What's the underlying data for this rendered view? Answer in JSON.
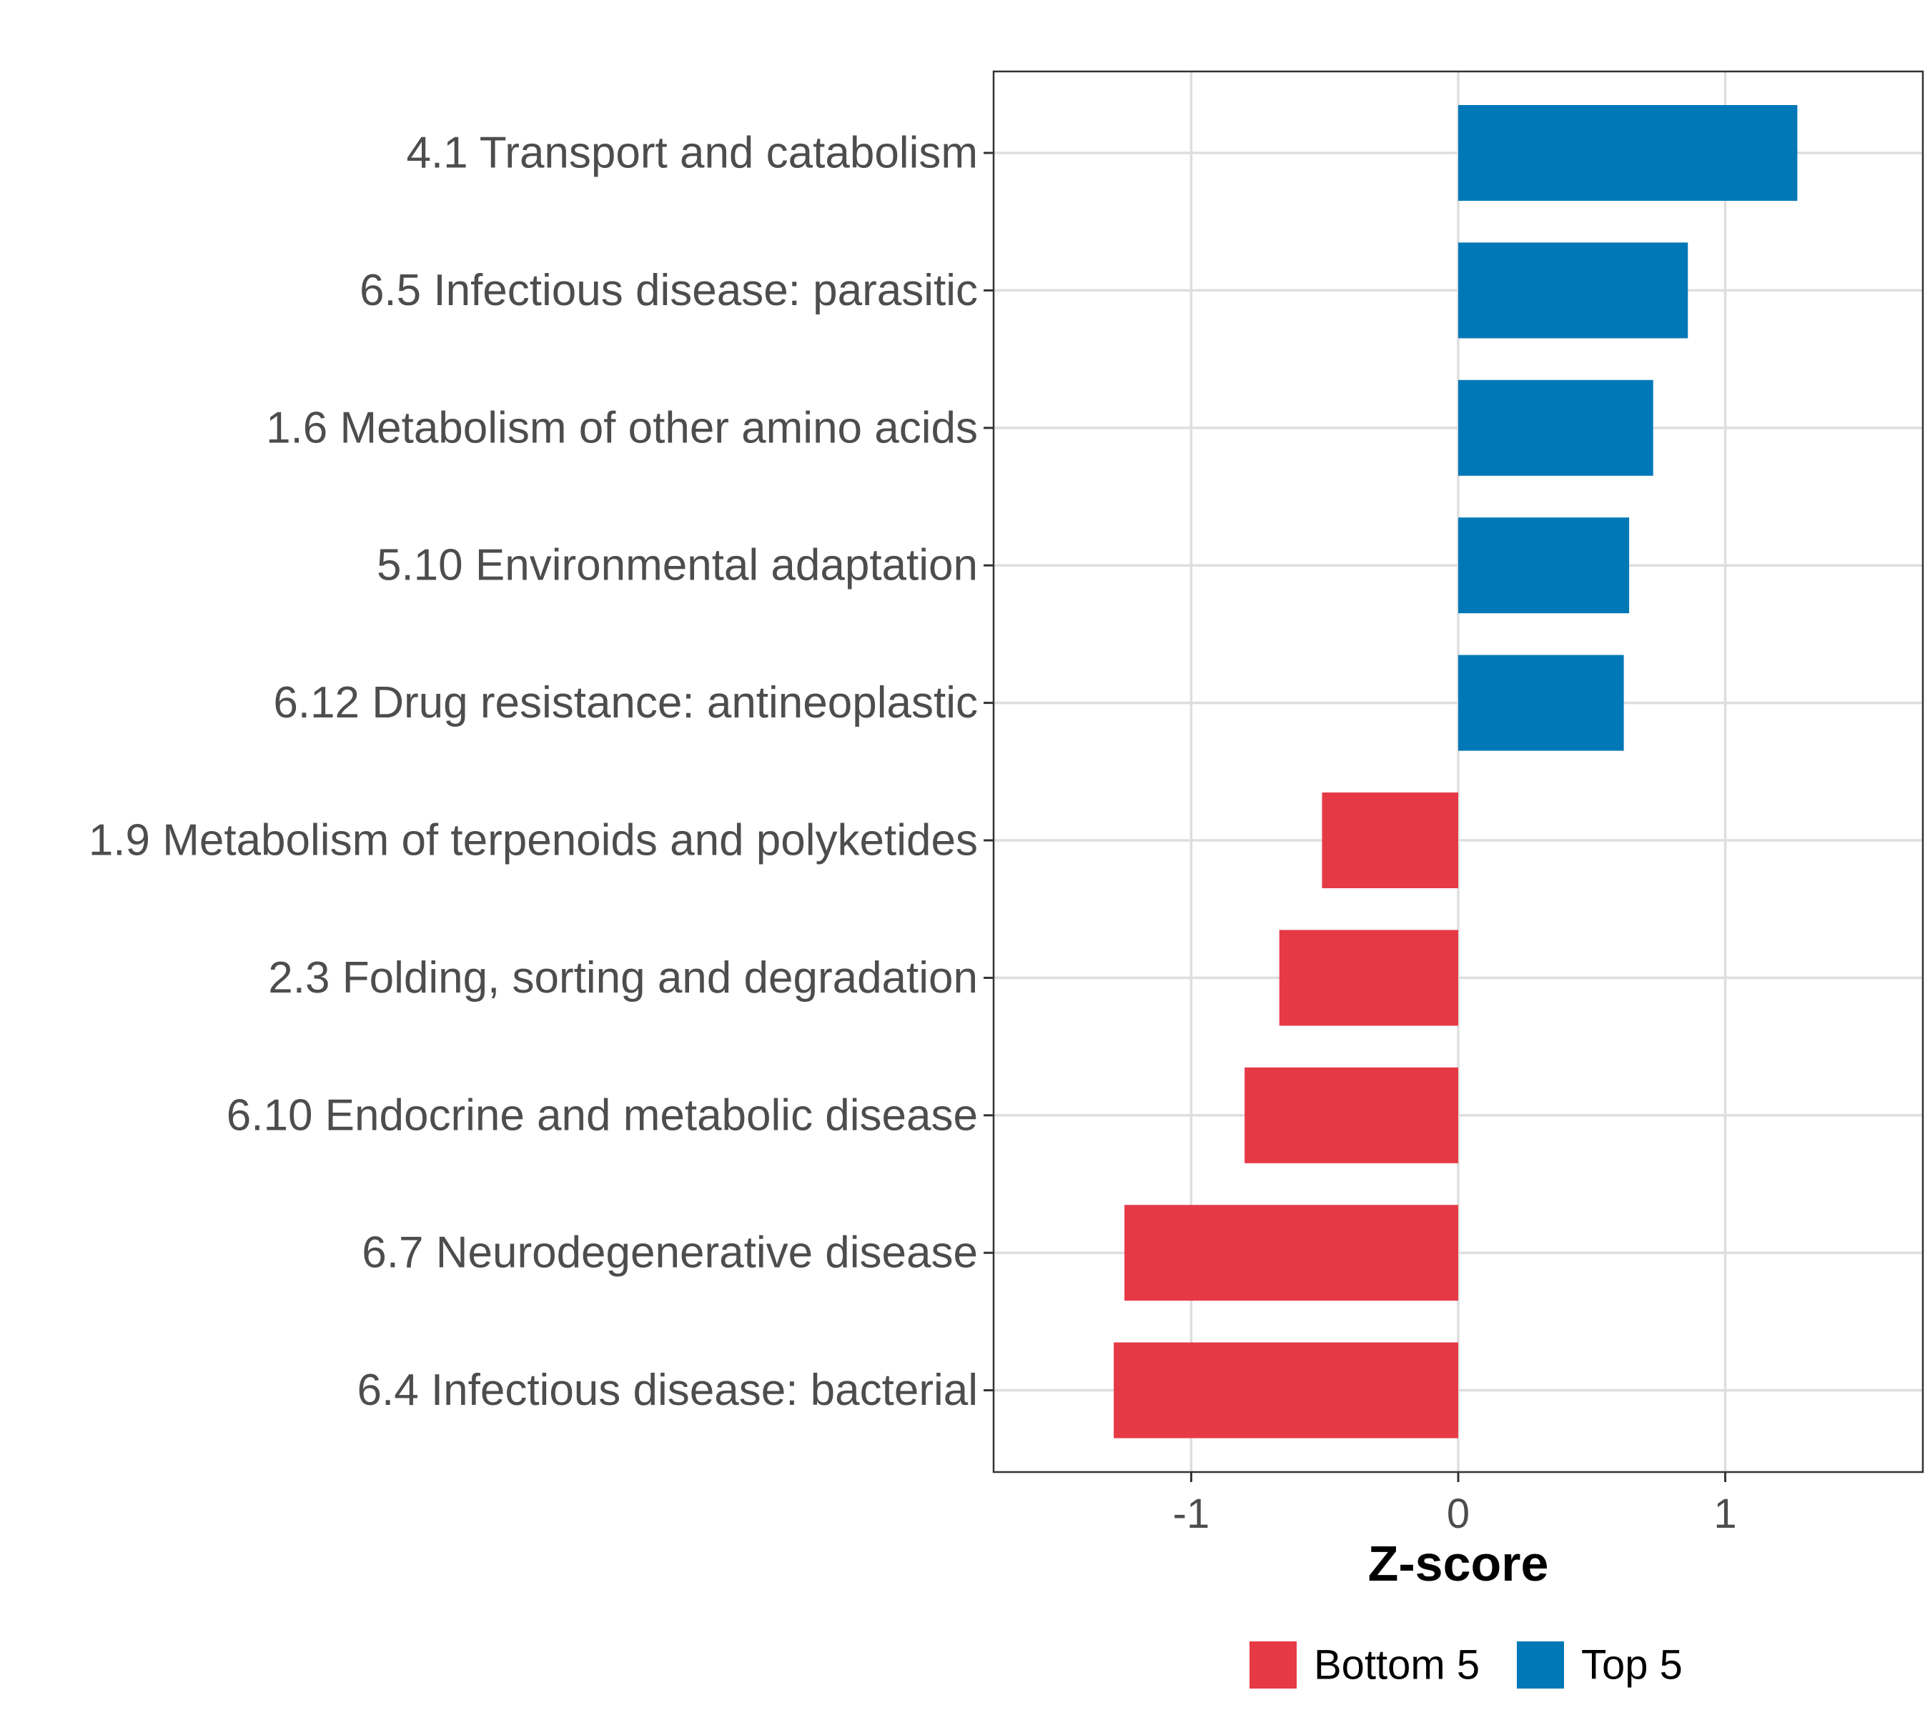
{
  "chart_data": {
    "type": "bar",
    "orientation": "horizontal",
    "categories": [
      "4.1 Transport and catabolism",
      "6.5 Infectious disease: parasitic",
      "1.6 Metabolism of other amino acids",
      "5.10 Environmental adaptation",
      "6.12 Drug resistance: antineoplastic",
      "1.9 Metabolism of terpenoids and polyketides",
      "2.3 Folding, sorting and degradation",
      "6.10 Endocrine and metabolic disease",
      "6.7 Neurodegenerative disease",
      "6.4 Infectious disease: bacterial"
    ],
    "values": [
      1.27,
      0.86,
      0.73,
      0.64,
      0.62,
      -0.51,
      -0.67,
      -0.8,
      -1.25,
      -1.29
    ],
    "groups": [
      "Top 5",
      "Top 5",
      "Top 5",
      "Top 5",
      "Top 5",
      "Bottom 5",
      "Bottom 5",
      "Bottom 5",
      "Bottom 5",
      "Bottom 5"
    ],
    "xlabel": "Z-score",
    "ylabel": "",
    "xlim": [
      -1.74,
      1.74
    ],
    "xticks": [
      -1,
      0,
      1
    ],
    "xtick_labels": [
      "-1",
      "0",
      "1"
    ],
    "grid": true,
    "legend": {
      "position": "bottom",
      "entries": [
        {
          "label": "Bottom 5",
          "color": "#e63946"
        },
        {
          "label": "Top 5",
          "color": "#0077b6"
        }
      ]
    },
    "colors": {
      "Top 5": "#0077b6",
      "Bottom 5": "#e63946"
    }
  }
}
